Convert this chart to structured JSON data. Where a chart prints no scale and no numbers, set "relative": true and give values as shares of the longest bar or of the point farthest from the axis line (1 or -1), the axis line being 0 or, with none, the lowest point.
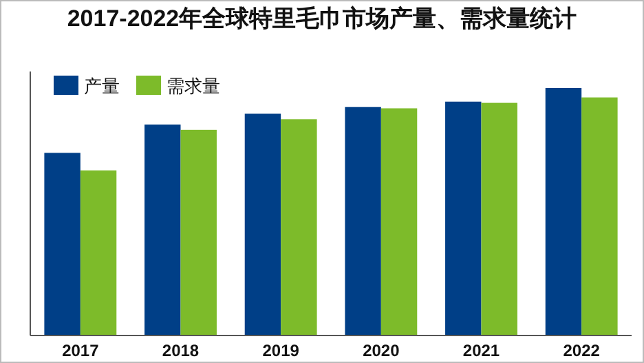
{
  "chart_data": {
    "type": "bar",
    "title": "2017-2022年全球特里毛巾市场产量、需求量统计",
    "relative": true,
    "legend": "top left",
    "categories": [
      "2017",
      "2018",
      "2019",
      "2020",
      "2021",
      "2022"
    ],
    "series": [
      {
        "name": "产量",
        "color": "#003f87",
        "values": [
          0.738,
          0.852,
          0.896,
          0.923,
          0.945,
          1
        ]
      },
      {
        "name": "需求量",
        "color": "#7dbb2a",
        "values": [
          0.667,
          0.831,
          0.874,
          0.918,
          0.94,
          0.962
        ]
      }
    ]
  }
}
